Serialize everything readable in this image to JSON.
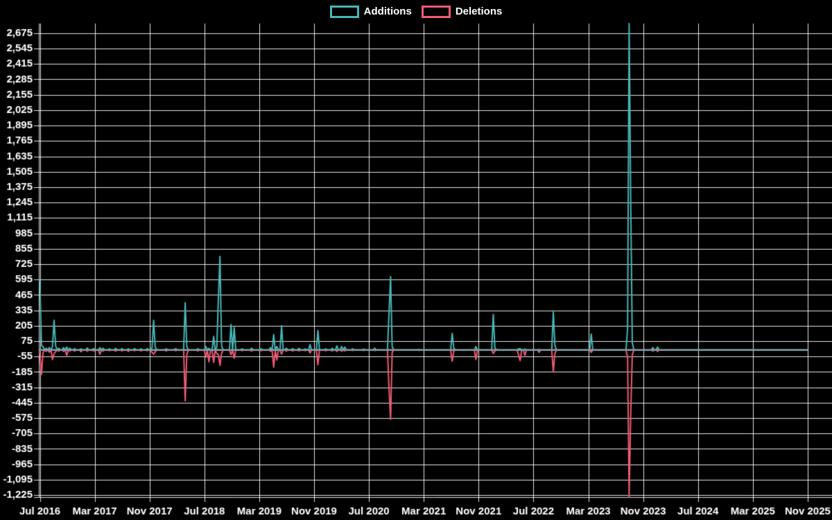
{
  "page": {
    "background_color": "#000000",
    "text_color": "#ffffff"
  },
  "chart_data": {
    "type": "line",
    "title": "",
    "legend_position": "top-center",
    "grid": "on",
    "grid_color": "rgba(255,255,255,0.9)",
    "zero_line_color": "#87a6b0",
    "axis_text_color": "#ffffff",
    "x_tick_labels": [
      "Jul 2016",
      "Mar 2017",
      "Nov 2017",
      "Jul 2018",
      "Mar 2019",
      "Nov 2019",
      "Jul 2020",
      "Mar 2021",
      "Nov 2021",
      "Jul 2022",
      "Mar 2023",
      "Nov 2023",
      "Jul 2024",
      "Mar 2025",
      "Nov 2025"
    ],
    "x_axis": {
      "unit": "week",
      "weeks_total": 487,
      "months_per_tick": 8,
      "start": "Jul 2016",
      "end": "Nov 2025"
    },
    "y_axis": {
      "min": -1242,
      "max": 2756,
      "tick_min": -1225,
      "tick_max": 2675,
      "tick_step": 130,
      "number_format": "thousands-comma"
    },
    "series": [
      {
        "name": "Additions",
        "color": "#47b8b8"
      },
      {
        "name": "Deletions",
        "color": "#f15b76"
      }
    ],
    "points_note": "sparse [weekIndex, additions, deletions]; all unlisted weeks are 0,0",
    "points": [
      [
        0,
        600,
        -30
      ],
      [
        1,
        40,
        -205
      ],
      [
        2,
        30,
        -25
      ],
      [
        4,
        15,
        -12
      ],
      [
        6,
        20,
        -18
      ],
      [
        8,
        30,
        -80
      ],
      [
        9,
        250,
        -30
      ],
      [
        10,
        35,
        -15
      ],
      [
        12,
        15,
        -10
      ],
      [
        15,
        20,
        -12
      ],
      [
        17,
        25,
        -45
      ],
      [
        19,
        15,
        -8
      ],
      [
        22,
        12,
        -10
      ],
      [
        26,
        10,
        -15
      ],
      [
        30,
        18,
        -10
      ],
      [
        34,
        12,
        -8
      ],
      [
        38,
        20,
        -35
      ],
      [
        40,
        15,
        -10
      ],
      [
        44,
        10,
        -6
      ],
      [
        48,
        14,
        -10
      ],
      [
        52,
        12,
        -8
      ],
      [
        56,
        10,
        -12
      ],
      [
        60,
        12,
        -6
      ],
      [
        64,
        10,
        -8
      ],
      [
        68,
        12,
        -6
      ],
      [
        71,
        20,
        -20
      ],
      [
        72,
        250,
        -35
      ],
      [
        73,
        25,
        -15
      ],
      [
        80,
        10,
        -8
      ],
      [
        86,
        12,
        -6
      ],
      [
        92,
        400,
        -430
      ],
      [
        93,
        30,
        -40
      ],
      [
        100,
        10,
        -8
      ],
      [
        105,
        30,
        -60
      ],
      [
        107,
        15,
        -100
      ],
      [
        110,
        115,
        -105
      ],
      [
        112,
        25,
        -30
      ],
      [
        113,
        440,
        -40
      ],
      [
        114,
        790,
        -130
      ],
      [
        115,
        40,
        -30
      ],
      [
        121,
        215,
        -40
      ],
      [
        123,
        190,
        -70
      ],
      [
        128,
        10,
        -6
      ],
      [
        134,
        15,
        -10
      ],
      [
        140,
        10,
        -6
      ],
      [
        146,
        20,
        -10
      ],
      [
        148,
        130,
        -145
      ],
      [
        150,
        30,
        -85
      ],
      [
        153,
        205,
        -35
      ],
      [
        156,
        15,
        -10
      ],
      [
        160,
        12,
        -8
      ],
      [
        164,
        15,
        -8
      ],
      [
        168,
        10,
        -6
      ],
      [
        171,
        45,
        -25
      ],
      [
        176,
        165,
        -125
      ],
      [
        181,
        10,
        -6
      ],
      [
        185,
        15,
        -8
      ],
      [
        188,
        35,
        -12
      ],
      [
        191,
        30,
        -10
      ],
      [
        193,
        25,
        -8
      ],
      [
        198,
        10,
        -5
      ],
      [
        205,
        8,
        -4
      ],
      [
        212,
        15,
        -5
      ],
      [
        221,
        310,
        -325
      ],
      [
        222,
        620,
        -585
      ],
      [
        223,
        30,
        -20
      ],
      [
        240,
        5,
        -3
      ],
      [
        261,
        140,
        -95
      ],
      [
        262,
        15,
        -10
      ],
      [
        276,
        30,
        -80
      ],
      [
        287,
        300,
        -30
      ],
      [
        288,
        20,
        -10
      ],
      [
        303,
        10,
        -40
      ],
      [
        304,
        10,
        -90
      ],
      [
        307,
        8,
        -45
      ],
      [
        316,
        5,
        -20
      ],
      [
        325,
        320,
        -185
      ],
      [
        326,
        40,
        -30
      ],
      [
        349,
        135,
        -20
      ],
      [
        372,
        180,
        -60
      ],
      [
        373,
        2756,
        -1242
      ],
      [
        374,
        1250,
        -540
      ],
      [
        375,
        60,
        -40
      ],
      [
        388,
        20,
        -10
      ],
      [
        391,
        25,
        -12
      ]
    ]
  }
}
